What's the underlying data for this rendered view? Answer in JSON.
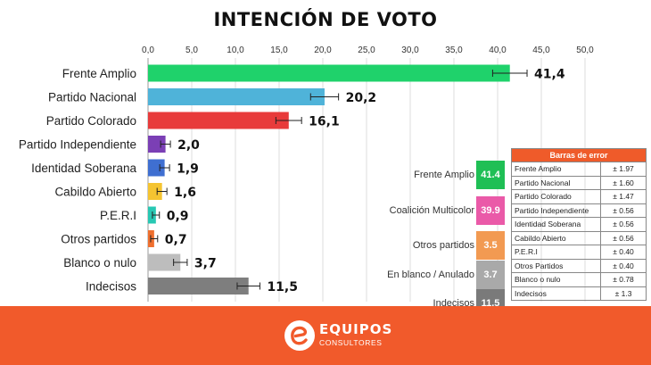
{
  "chart_data": {
    "type": "bar",
    "orientation": "horizontal",
    "title": "INTENCIÓN DE VOTO",
    "xlim": [
      0,
      50
    ],
    "ticks": [
      "0,0",
      "5,0",
      "10,0",
      "15,0",
      "20,0",
      "25,0",
      "30,0",
      "35,0",
      "40,0",
      "45,0",
      "50,0"
    ],
    "categories": [
      "Frente Amplio",
      "Partido Nacional",
      "Partido Colorado",
      "Partido Independiente",
      "Identidad Soberana",
      "Cabildo Abierto",
      "P.E.R.I",
      "Otros partidos",
      "Blanco o nulo",
      "Indecisos"
    ],
    "values": [
      41.4,
      20.2,
      16.1,
      2.0,
      1.9,
      1.6,
      0.9,
      0.7,
      3.7,
      11.5
    ],
    "value_labels": [
      "41,4",
      "20,2",
      "16,1",
      "2,0",
      "1,9",
      "1,6",
      "0,9",
      "0,7",
      "3,7",
      "11,5"
    ],
    "errors": [
      1.97,
      1.6,
      1.47,
      0.56,
      0.56,
      0.56,
      0.4,
      0.4,
      0.78,
      1.3
    ],
    "colors": [
      "#1fd26b",
      "#4fb3d9",
      "#e83b3b",
      "#7b3fb5",
      "#3f6fd1",
      "#f5c431",
      "#27c8b3",
      "#ef6f2e",
      "#bdbdbd",
      "#7e7e7e"
    ],
    "grid": true
  },
  "summary": [
    {
      "label": "Frente Amplio",
      "value": "41.4",
      "color": "#1fbf55"
    },
    {
      "label": "Coalición Multicolor",
      "value": "39.9",
      "color": "#ea5aa8"
    },
    {
      "label": "Otros partidos",
      "value": "3.5",
      "color": "#f29a52"
    },
    {
      "label": "En blanco / Anulado",
      "value": "3.7",
      "color": "#a9a9a9"
    },
    {
      "label": "Indecisos",
      "value": "11.5",
      "color": "#7a7a7a"
    }
  ],
  "error_table": {
    "title": "Barras de error",
    "rows": [
      {
        "name": "Frente Amplio",
        "value": "± 1.97"
      },
      {
        "name": "Partido Nacional",
        "value": "± 1.60"
      },
      {
        "name": "Partido Colorado",
        "value": "± 1.47"
      },
      {
        "name": "Partido Independiente",
        "value": "± 0.56"
      },
      {
        "name": "Identidad Soberana",
        "value": "± 0.56"
      },
      {
        "name": "Cabildo Abierto",
        "value": "± 0.56"
      },
      {
        "name": "P.E.R.I",
        "value": "± 0.40"
      },
      {
        "name": "Otros Partidos",
        "value": "± 0.40"
      },
      {
        "name": "Blanco o nulo",
        "value": "± 0.78"
      },
      {
        "name": "Indecisos",
        "value": "± 1.3"
      }
    ]
  },
  "footer": {
    "brand": "EQUIPOS",
    "sub": "CONSULTORES",
    "bg_color": "#f15a2b"
  }
}
